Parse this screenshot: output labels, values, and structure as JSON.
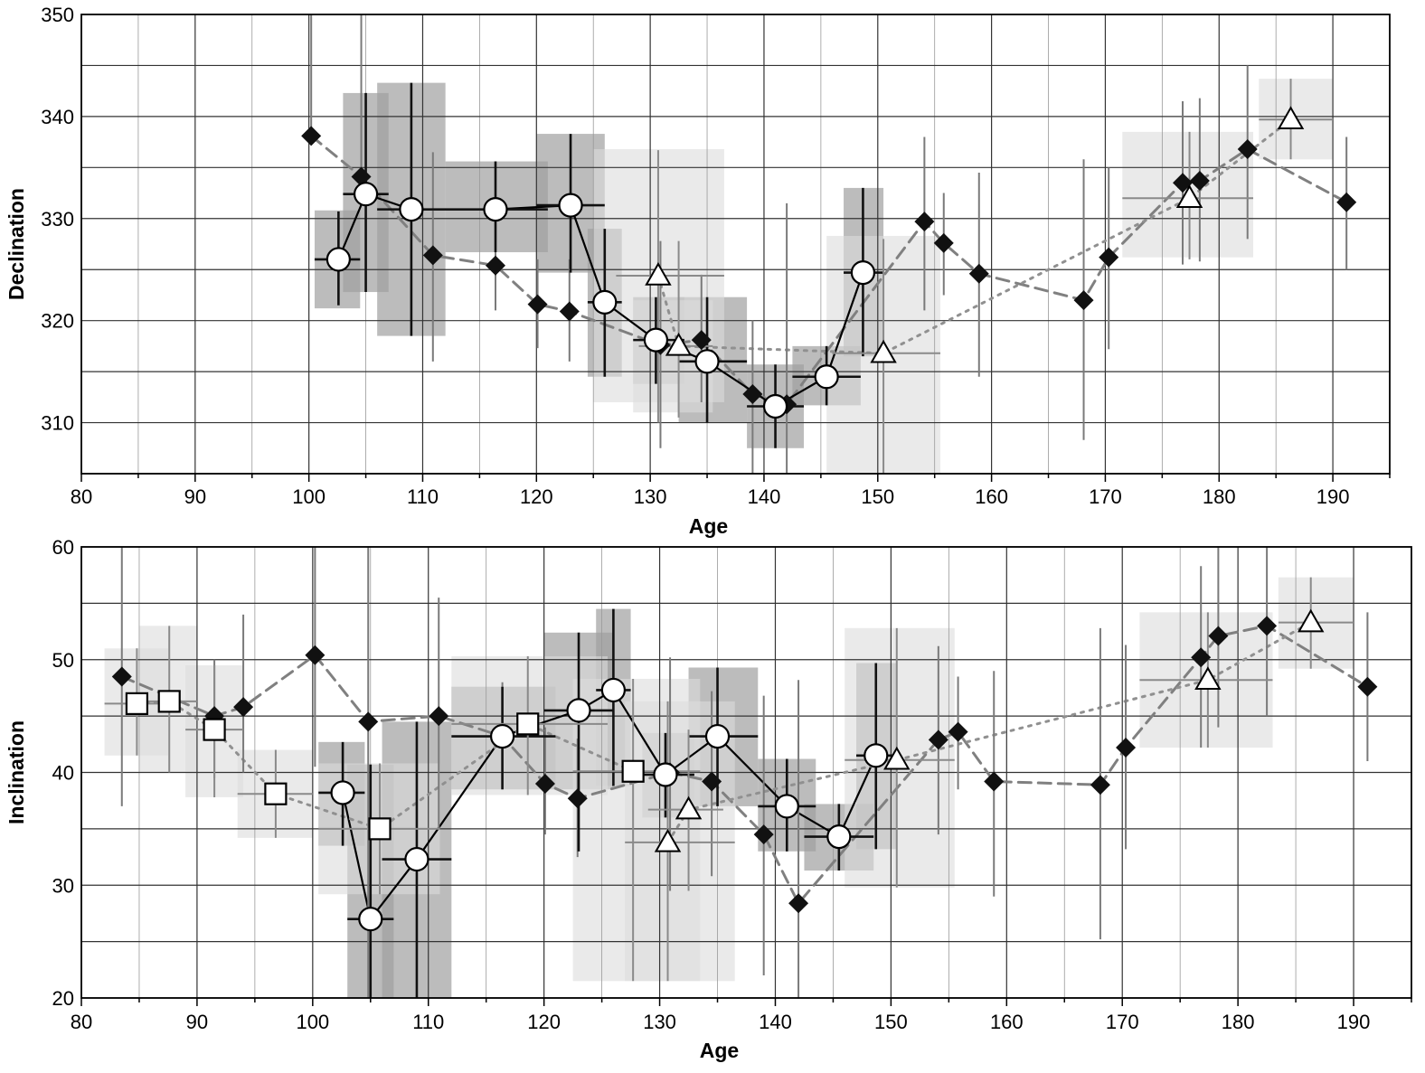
{
  "chart_data": [
    {
      "type": "scatter",
      "title": "",
      "xlabel": "Age",
      "ylabel": "Declination",
      "xlim": [
        80,
        195
      ],
      "ylim": [
        305,
        350
      ],
      "x_ticks": [
        80,
        90,
        100,
        110,
        120,
        130,
        140,
        150,
        160,
        170,
        180,
        190
      ],
      "y_ticks": [
        310,
        320,
        330,
        340,
        350
      ],
      "grid": true,
      "series": [
        {
          "marker": "diamond",
          "color": "#111111",
          "line": "dashed",
          "line_color": "#808080",
          "x": [
            100.2,
            104.6,
            110.9,
            116.4,
            120.1,
            122.9,
            130.9,
            134.5,
            139.0,
            142.0,
            154.1,
            155.8,
            158.9,
            168.1,
            170.3,
            176.8,
            178.3,
            182.5,
            191.2
          ],
          "y": [
            338.1,
            334.1,
            326.4,
            325.4,
            321.6,
            320.9,
            317.6,
            318.1,
            312.8,
            311.8,
            329.7,
            327.6,
            324.6,
            322.0,
            326.2,
            333.5,
            333.7,
            336.8,
            331.6
          ],
          "err_low": [
            338.1,
            334.1,
            316.0,
            321.0,
            317.3,
            316.0,
            307.5,
            312.0,
            305.0,
            305.0,
            321.0,
            322.5,
            314.5,
            308.3,
            317.2,
            325.5,
            325.8,
            328.0,
            325.0
          ],
          "err_high": [
            350.0,
            350.0,
            336.5,
            330.0,
            326.0,
            326.0,
            327.8,
            324.5,
            320.0,
            331.5,
            338.0,
            332.5,
            334.5,
            335.8,
            335.0,
            341.5,
            341.8,
            345.0,
            338.0
          ]
        },
        {
          "marker": "circle",
          "color": "#000000",
          "line": "solid",
          "line_color": "#000000",
          "x": [
            102.6,
            105.0,
            109.0,
            116.4,
            123.0,
            126.0,
            130.5,
            135.0,
            141.0,
            145.5,
            148.7
          ],
          "y": [
            326.0,
            332.4,
            330.9,
            330.9,
            331.3,
            321.8,
            318.1,
            316.0,
            311.6,
            314.5,
            324.7
          ],
          "x_low": [
            100.5,
            103.0,
            106.0,
            112.0,
            120.0,
            124.5,
            128.5,
            132.5,
            138.5,
            142.5,
            147.0
          ],
          "x_high": [
            104.5,
            107.0,
            112.0,
            121.0,
            126.0,
            127.5,
            133.0,
            138.5,
            143.5,
            148.5,
            150.5
          ],
          "err_low": [
            321.5,
            322.8,
            318.5,
            326.7,
            324.7,
            314.5,
            313.8,
            310.0,
            307.5,
            311.7,
            316.5
          ],
          "err_high": [
            330.7,
            342.3,
            343.3,
            335.6,
            338.3,
            329.0,
            322.3,
            322.3,
            315.7,
            317.5,
            333.0
          ]
        },
        {
          "marker": "triangle",
          "color": "#000000",
          "line": "dotted",
          "line_color": "#909090",
          "x": [
            130.7,
            132.5,
            150.5,
            177.4,
            186.3
          ],
          "y": [
            324.4,
            317.5,
            316.8,
            332.0,
            339.7
          ],
          "x_low": [
            127.0,
            129.0,
            146.0,
            171.5,
            183.5
          ],
          "x_high": [
            136.5,
            135.5,
            155.5,
            183.0,
            190.0
          ],
          "err_low": [
            310.0,
            310.5,
            305.0,
            326.0,
            335.8
          ],
          "err_high": [
            336.7,
            327.8,
            328.0,
            338.5,
            343.7
          ]
        }
      ],
      "boxes": [
        {
          "x0": 100.5,
          "x1": 104.5,
          "y0": 321.2,
          "y1": 330.8,
          "shade": "dark"
        },
        {
          "x0": 103.0,
          "x1": 107.0,
          "y0": 322.8,
          "y1": 342.3,
          "shade": "dark"
        },
        {
          "x0": 106.0,
          "x1": 112.0,
          "y0": 318.5,
          "y1": 343.3,
          "shade": "dark"
        },
        {
          "x0": 112.0,
          "x1": 121.0,
          "y0": 326.7,
          "y1": 335.6,
          "shade": "dark"
        },
        {
          "x0": 120.0,
          "x1": 126.0,
          "y0": 324.7,
          "y1": 338.3,
          "shade": "dark"
        },
        {
          "x0": 124.5,
          "x1": 127.5,
          "y0": 314.5,
          "y1": 329.0,
          "shade": "dark"
        },
        {
          "x0": 128.5,
          "x1": 133.0,
          "y0": 313.8,
          "y1": 322.3,
          "shade": "dark"
        },
        {
          "x0": 132.5,
          "x1": 138.5,
          "y0": 310.0,
          "y1": 322.3,
          "shade": "dark"
        },
        {
          "x0": 138.5,
          "x1": 143.5,
          "y0": 307.5,
          "y1": 315.7,
          "shade": "dark"
        },
        {
          "x0": 142.5,
          "x1": 148.5,
          "y0": 311.7,
          "y1": 317.5,
          "shade": "dark"
        },
        {
          "x0": 147.0,
          "x1": 150.5,
          "y0": 316.5,
          "y1": 333.0,
          "shade": "dark"
        },
        {
          "x0": 125.0,
          "x1": 136.5,
          "y0": 312.0,
          "y1": 336.8,
          "shade": "light"
        },
        {
          "x0": 128.5,
          "x1": 135.5,
          "y0": 311.0,
          "y1": 322.0,
          "shade": "light"
        },
        {
          "x0": 145.5,
          "x1": 155.5,
          "y0": 305.0,
          "y1": 328.3,
          "shade": "light"
        },
        {
          "x0": 171.5,
          "x1": 183.0,
          "y0": 326.2,
          "y1": 338.5,
          "shade": "light"
        },
        {
          "x0": 183.5,
          "x1": 190.0,
          "y0": 335.8,
          "y1": 343.7,
          "shade": "light"
        }
      ]
    },
    {
      "type": "scatter",
      "title": "",
      "xlabel": "Age",
      "ylabel": "Inclination",
      "xlim": [
        80,
        195
      ],
      "ylim": [
        20,
        60
      ],
      "x_ticks": [
        80,
        90,
        100,
        110,
        120,
        130,
        140,
        150,
        160,
        170,
        180,
        190
      ],
      "y_ticks": [
        20,
        30,
        40,
        50,
        60
      ],
      "grid": true,
      "series": [
        {
          "marker": "diamond",
          "color": "#111111",
          "line": "dashed",
          "line_color": "#808080",
          "x": [
            83.5,
            91.5,
            94.0,
            100.2,
            104.8,
            110.9,
            116.4,
            120.1,
            122.9,
            130.9,
            134.5,
            139.0,
            142.0,
            154.1,
            155.8,
            158.9,
            168.1,
            170.3,
            176.8,
            178.3,
            182.5,
            191.2
          ],
          "y": [
            48.5,
            45.0,
            45.8,
            50.4,
            44.5,
            45.0,
            43.2,
            39.0,
            37.7,
            40.0,
            39.2,
            34.5,
            28.4,
            42.9,
            43.6,
            39.2,
            38.9,
            42.2,
            50.2,
            52.1,
            53.0,
            47.6
          ],
          "err_low": [
            37.0,
            39.5,
            40.0,
            40.5,
            20.0,
            35.0,
            38.5,
            34.5,
            32.5,
            29.5,
            30.8,
            22.0,
            20.0,
            34.5,
            38.5,
            29.0,
            25.2,
            33.2,
            42.2,
            44.0,
            45.0,
            41.0
          ],
          "err_high": [
            60.0,
            50.0,
            54.0,
            60.0,
            60.0,
            55.5,
            48.0,
            44.0,
            43.0,
            50.2,
            47.2,
            46.8,
            48.2,
            51.2,
            48.5,
            49.0,
            52.8,
            51.3,
            58.3,
            60.0,
            60.0,
            54.2
          ]
        },
        {
          "marker": "circle",
          "color": "#000000",
          "line": "solid",
          "line_color": "#000000",
          "x": [
            102.6,
            105.0,
            109.0,
            116.4,
            123.0,
            126.0,
            130.5,
            135.0,
            141.0,
            145.5,
            148.7
          ],
          "y": [
            38.2,
            27.0,
            32.3,
            43.2,
            45.5,
            47.3,
            39.8,
            43.2,
            37.0,
            34.3,
            41.5
          ],
          "x_low": [
            100.5,
            103.0,
            106.0,
            112.0,
            120.0,
            124.5,
            128.5,
            132.5,
            138.5,
            142.5,
            147.0
          ],
          "x_high": [
            104.5,
            107.0,
            112.0,
            121.0,
            126.0,
            127.5,
            133.0,
            138.5,
            143.5,
            148.5,
            150.5
          ],
          "err_low": [
            33.5,
            20.0,
            20.0,
            38.5,
            33.0,
            38.8,
            36.0,
            37.0,
            33.0,
            31.3,
            33.2
          ],
          "err_high": [
            42.7,
            40.7,
            44.5,
            47.6,
            52.4,
            54.5,
            43.5,
            49.3,
            41.2,
            37.2,
            49.7
          ]
        },
        {
          "marker": "square",
          "color": "#000000",
          "line": "dotted",
          "line_color": "#909090",
          "x": [
            84.8,
            87.6,
            91.5,
            96.8,
            105.8,
            118.6,
            127.7
          ],
          "y": [
            46.1,
            46.3,
            43.8,
            38.1,
            35.0,
            44.3,
            40.1
          ],
          "x_low": [
            82.0,
            85.0,
            89.0,
            93.5,
            100.5,
            112.0,
            122.5
          ],
          "x_high": [
            87.5,
            90.0,
            94.0,
            100.0,
            111.0,
            125.5,
            133.5
          ],
          "err_low": [
            41.5,
            40.0,
            37.8,
            34.2,
            29.2,
            38.0,
            21.5
          ],
          "err_high": [
            51.0,
            53.0,
            49.5,
            42.0,
            40.8,
            50.3,
            48.3
          ]
        },
        {
          "marker": "triangle",
          "color": "#000000",
          "line": "dotted",
          "line_color": "#909090",
          "x": [
            130.7,
            132.5,
            150.5,
            177.4,
            186.3
          ],
          "y": [
            33.8,
            36.7,
            41.1,
            48.2,
            53.3
          ],
          "x_low": [
            127.0,
            129.0,
            146.0,
            171.5,
            183.5
          ],
          "x_high": [
            136.5,
            135.5,
            155.5,
            183.0,
            190.0
          ],
          "err_low": [
            21.5,
            29.5,
            29.8,
            42.2,
            49.2
          ],
          "err_high": [
            46.3,
            43.8,
            52.8,
            54.2,
            57.3
          ]
        }
      ],
      "boxes": [
        {
          "x0": 100.5,
          "x1": 104.5,
          "y0": 33.5,
          "y1": 42.7,
          "shade": "dark"
        },
        {
          "x0": 103.0,
          "x1": 107.0,
          "y0": 20.0,
          "y1": 40.7,
          "shade": "dark"
        },
        {
          "x0": 106.0,
          "x1": 112.0,
          "y0": 20.0,
          "y1": 44.5,
          "shade": "dark"
        },
        {
          "x0": 112.0,
          "x1": 121.0,
          "y0": 38.5,
          "y1": 47.6,
          "shade": "dark"
        },
        {
          "x0": 120.0,
          "x1": 126.0,
          "y0": 38.5,
          "y1": 52.4,
          "shade": "dark"
        },
        {
          "x0": 124.5,
          "x1": 127.5,
          "y0": 38.8,
          "y1": 54.5,
          "shade": "dark"
        },
        {
          "x0": 128.5,
          "x1": 133.0,
          "y0": 36.0,
          "y1": 43.5,
          "shade": "dark"
        },
        {
          "x0": 132.5,
          "x1": 138.5,
          "y0": 37.0,
          "y1": 49.3,
          "shade": "dark"
        },
        {
          "x0": 138.5,
          "x1": 143.5,
          "y0": 33.0,
          "y1": 41.2,
          "shade": "dark"
        },
        {
          "x0": 142.5,
          "x1": 148.5,
          "y0": 31.3,
          "y1": 37.2,
          "shade": "dark"
        },
        {
          "x0": 147.0,
          "x1": 150.5,
          "y0": 33.2,
          "y1": 49.7,
          "shade": "dark"
        },
        {
          "x0": 82.0,
          "x1": 87.5,
          "y0": 41.5,
          "y1": 51.0,
          "shade": "light"
        },
        {
          "x0": 85.0,
          "x1": 90.0,
          "y0": 40.0,
          "y1": 53.0,
          "shade": "light"
        },
        {
          "x0": 89.0,
          "x1": 94.0,
          "y0": 37.8,
          "y1": 49.5,
          "shade": "light"
        },
        {
          "x0": 93.5,
          "x1": 100.0,
          "y0": 34.2,
          "y1": 42.0,
          "shade": "light"
        },
        {
          "x0": 100.5,
          "x1": 111.0,
          "y0": 29.2,
          "y1": 40.8,
          "shade": "light"
        },
        {
          "x0": 112.0,
          "x1": 125.5,
          "y0": 38.0,
          "y1": 50.3,
          "shade": "light"
        },
        {
          "x0": 122.5,
          "x1": 133.5,
          "y0": 21.5,
          "y1": 48.3,
          "shade": "light"
        },
        {
          "x0": 127.0,
          "x1": 136.5,
          "y0": 21.5,
          "y1": 46.3,
          "shade": "light"
        },
        {
          "x0": 146.0,
          "x1": 155.5,
          "y0": 29.8,
          "y1": 52.8,
          "shade": "light"
        },
        {
          "x0": 171.5,
          "x1": 183.0,
          "y0": 42.2,
          "y1": 54.2,
          "shade": "light"
        },
        {
          "x0": 183.5,
          "x1": 190.0,
          "y0": 49.2,
          "y1": 57.3,
          "shade": "light"
        }
      ]
    }
  ]
}
